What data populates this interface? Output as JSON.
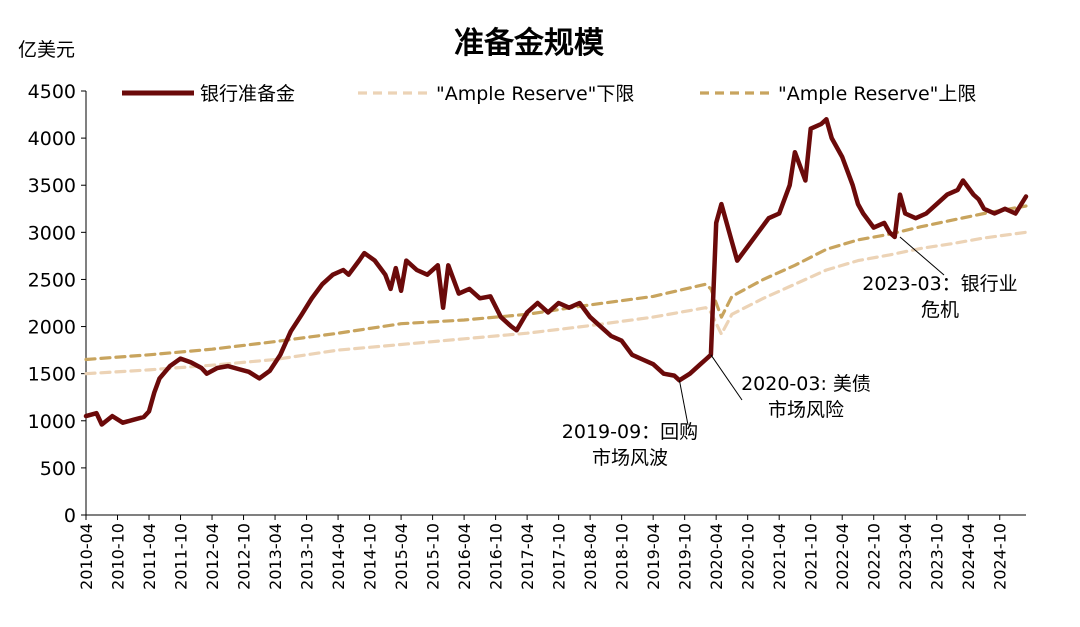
{
  "chart_data": {
    "type": "line",
    "title": "准备金规模",
    "ylabel": "亿美元",
    "xlabel": "",
    "ylim": [
      0,
      4500
    ],
    "yticks": [
      0,
      500,
      1000,
      1500,
      2000,
      2500,
      3000,
      3500,
      4000,
      4500
    ],
    "xlim": [
      "2010-04",
      "2025-03"
    ],
    "xticks": [
      "2010-04",
      "2010-10",
      "2011-04",
      "2011-10",
      "2012-04",
      "2012-10",
      "2013-04",
      "2013-10",
      "2014-04",
      "2014-10",
      "2015-04",
      "2015-10",
      "2016-04",
      "2016-10",
      "2017-04",
      "2017-10",
      "2018-04",
      "2018-10",
      "2019-04",
      "2019-10",
      "2020-04",
      "2020-10",
      "2021-04",
      "2021-10",
      "2022-04",
      "2022-10",
      "2023-04",
      "2023-10",
      "2024-04",
      "2024-10"
    ],
    "legend": "top",
    "grid": false,
    "series": [
      {
        "name": "银行准备金",
        "color": "#6b0a0a",
        "style": "solid",
        "points": [
          [
            "2010-04",
            1050
          ],
          [
            "2010-06",
            1080
          ],
          [
            "2010-07",
            960
          ],
          [
            "2010-09",
            1050
          ],
          [
            "2010-11",
            980
          ],
          [
            "2011-01",
            1010
          ],
          [
            "2011-03",
            1040
          ],
          [
            "2011-04",
            1100
          ],
          [
            "2011-05",
            1300
          ],
          [
            "2011-06",
            1450
          ],
          [
            "2011-08",
            1580
          ],
          [
            "2011-10",
            1660
          ],
          [
            "2011-12",
            1620
          ],
          [
            "2012-02",
            1560
          ],
          [
            "2012-03",
            1500
          ],
          [
            "2012-05",
            1560
          ],
          [
            "2012-07",
            1580
          ],
          [
            "2012-09",
            1550
          ],
          [
            "2012-11",
            1520
          ],
          [
            "2013-01",
            1450
          ],
          [
            "2013-03",
            1530
          ],
          [
            "2013-05",
            1700
          ],
          [
            "2013-07",
            1950
          ],
          [
            "2013-09",
            2120
          ],
          [
            "2013-11",
            2300
          ],
          [
            "2014-01",
            2450
          ],
          [
            "2014-03",
            2550
          ],
          [
            "2014-05",
            2600
          ],
          [
            "2014-06",
            2550
          ],
          [
            "2014-08",
            2700
          ],
          [
            "2014-09",
            2780
          ],
          [
            "2014-11",
            2700
          ],
          [
            "2015-01",
            2550
          ],
          [
            "2015-02",
            2400
          ],
          [
            "2015-03",
            2620
          ],
          [
            "2015-04",
            2380
          ],
          [
            "2015-05",
            2700
          ],
          [
            "2015-07",
            2600
          ],
          [
            "2015-09",
            2550
          ],
          [
            "2015-11",
            2650
          ],
          [
            "2015-12",
            2200
          ],
          [
            "2016-01",
            2650
          ],
          [
            "2016-03",
            2350
          ],
          [
            "2016-05",
            2400
          ],
          [
            "2016-07",
            2300
          ],
          [
            "2016-09",
            2320
          ],
          [
            "2016-11",
            2100
          ],
          [
            "2017-01",
            2000
          ],
          [
            "2017-02",
            1960
          ],
          [
            "2017-04",
            2150
          ],
          [
            "2017-06",
            2250
          ],
          [
            "2017-08",
            2150
          ],
          [
            "2017-10",
            2250
          ],
          [
            "2017-12",
            2200
          ],
          [
            "2018-02",
            2250
          ],
          [
            "2018-04",
            2100
          ],
          [
            "2018-06",
            2000
          ],
          [
            "2018-08",
            1900
          ],
          [
            "2018-10",
            1850
          ],
          [
            "2018-12",
            1700
          ],
          [
            "2019-02",
            1650
          ],
          [
            "2019-04",
            1600
          ],
          [
            "2019-06",
            1500
          ],
          [
            "2019-08",
            1480
          ],
          [
            "2019-09",
            1430
          ],
          [
            "2019-11",
            1500
          ],
          [
            "2020-01",
            1600
          ],
          [
            "2020-02",
            1650
          ],
          [
            "2020-03",
            1700
          ],
          [
            "2020-04",
            3100
          ],
          [
            "2020-05",
            3300
          ],
          [
            "2020-07",
            2900
          ],
          [
            "2020-08",
            2700
          ],
          [
            "2020-10",
            2850
          ],
          [
            "2020-12",
            3000
          ],
          [
            "2021-02",
            3150
          ],
          [
            "2021-04",
            3200
          ],
          [
            "2021-06",
            3500
          ],
          [
            "2021-07",
            3850
          ],
          [
            "2021-09",
            3550
          ],
          [
            "2021-10",
            4100
          ],
          [
            "2021-12",
            4150
          ],
          [
            "2022-01",
            4200
          ],
          [
            "2022-02",
            4000
          ],
          [
            "2022-04",
            3800
          ],
          [
            "2022-06",
            3500
          ],
          [
            "2022-07",
            3300
          ],
          [
            "2022-08",
            3200
          ],
          [
            "2022-10",
            3050
          ],
          [
            "2022-12",
            3100
          ],
          [
            "2023-01",
            3000
          ],
          [
            "2023-02",
            2950
          ],
          [
            "2023-03",
            3400
          ],
          [
            "2023-04",
            3200
          ],
          [
            "2023-06",
            3150
          ],
          [
            "2023-08",
            3200
          ],
          [
            "2023-10",
            3300
          ],
          [
            "2023-12",
            3400
          ],
          [
            "2024-02",
            3450
          ],
          [
            "2024-03",
            3550
          ],
          [
            "2024-05",
            3400
          ],
          [
            "2024-06",
            3350
          ],
          [
            "2024-07",
            3250
          ],
          [
            "2024-09",
            3200
          ],
          [
            "2024-11",
            3250
          ],
          [
            "2025-01",
            3200
          ],
          [
            "2025-03",
            3380
          ]
        ]
      },
      {
        "name": "\"Ample Reserve\"下限",
        "color": "#ecd3b6",
        "style": "dashed",
        "points": [
          [
            "2010-04",
            1500
          ],
          [
            "2011-04",
            1540
          ],
          [
            "2012-04",
            1590
          ],
          [
            "2013-04",
            1650
          ],
          [
            "2014-04",
            1750
          ],
          [
            "2015-04",
            1810
          ],
          [
            "2016-04",
            1870
          ],
          [
            "2017-04",
            1930
          ],
          [
            "2018-04",
            2010
          ],
          [
            "2019-04",
            2100
          ],
          [
            "2020-02",
            2200
          ],
          [
            "2020-03",
            2150
          ],
          [
            "2020-05",
            1920
          ],
          [
            "2020-07",
            2130
          ],
          [
            "2021-01",
            2300
          ],
          [
            "2021-07",
            2450
          ],
          [
            "2022-01",
            2600
          ],
          [
            "2022-07",
            2700
          ],
          [
            "2023-01",
            2760
          ],
          [
            "2023-07",
            2830
          ],
          [
            "2024-01",
            2880
          ],
          [
            "2024-07",
            2940
          ],
          [
            "2025-03",
            3000
          ]
        ]
      },
      {
        "name": "\"Ample Reserve\"上限",
        "color": "#c8a45e",
        "style": "dashed",
        "points": [
          [
            "2010-04",
            1650
          ],
          [
            "2011-04",
            1700
          ],
          [
            "2012-04",
            1760
          ],
          [
            "2013-04",
            1840
          ],
          [
            "2014-04",
            1930
          ],
          [
            "2015-04",
            2030
          ],
          [
            "2016-04",
            2070
          ],
          [
            "2017-04",
            2130
          ],
          [
            "2018-04",
            2230
          ],
          [
            "2019-04",
            2320
          ],
          [
            "2020-02",
            2450
          ],
          [
            "2020-03",
            2400
          ],
          [
            "2020-05",
            2100
          ],
          [
            "2020-07",
            2320
          ],
          [
            "2021-01",
            2500
          ],
          [
            "2021-07",
            2650
          ],
          [
            "2022-01",
            2820
          ],
          [
            "2022-07",
            2920
          ],
          [
            "2023-01",
            2980
          ],
          [
            "2023-07",
            3060
          ],
          [
            "2024-01",
            3130
          ],
          [
            "2024-07",
            3200
          ],
          [
            "2025-03",
            3280
          ]
        ]
      }
    ],
    "annotations": [
      {
        "lines": [
          "2019-09：回购",
          "市场风波"
        ],
        "x": "2019-09",
        "y": 1430
      },
      {
        "lines": [
          "2020-03: 美债",
          "市场风险"
        ],
        "x": "2020-03",
        "y": 1700
      },
      {
        "lines": [
          "2023-03：银行业",
          "危机"
        ],
        "x": "2023-03",
        "y": 2950
      }
    ]
  }
}
